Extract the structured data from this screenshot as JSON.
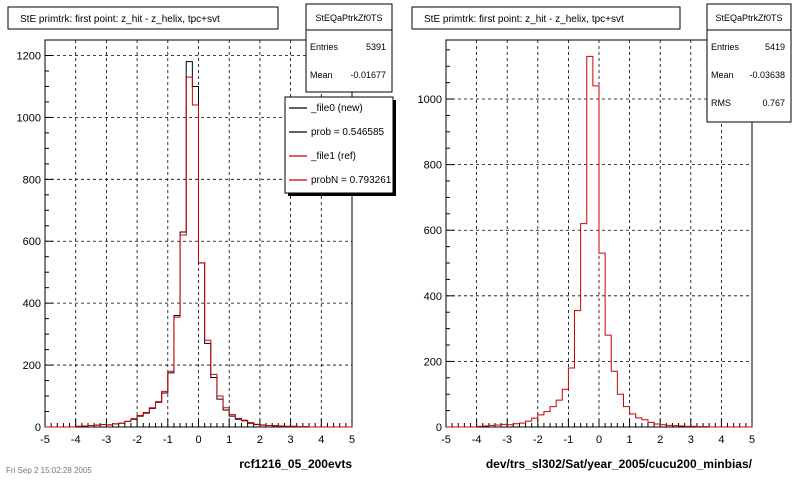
{
  "footer_stamp": "Fri Sep 2 15:02:28 2005",
  "chart_data": [
    {
      "type": "histogram",
      "title": "StE primtrk: first point: z_hit - z_helix, tpc+svt",
      "xlabel": "rcf1216_05_200evts",
      "ylabel": "",
      "xlim": [
        -5,
        5
      ],
      "ylim": [
        0,
        1250
      ],
      "xticks": [
        -5,
        -4,
        -3,
        -2,
        -1,
        0,
        1,
        2,
        3,
        4,
        5
      ],
      "yticks": [
        0,
        200,
        400,
        600,
        800,
        1000,
        1200
      ],
      "grid": true,
      "bin_edges_start": -5,
      "bin_width": 0.2,
      "stats": {
        "name": "StEQaPtrkZf0TS",
        "rows": [
          {
            "label": "Entries",
            "value": "5391"
          },
          {
            "label": "Mean",
            "value": "-0.01677"
          }
        ]
      },
      "legend": {
        "position": "top-right",
        "entries": [
          {
            "label": "_file0 (new)",
            "color": "#000000"
          },
          {
            "label": "prob = 0.546585",
            "color": "#000000"
          },
          {
            "label": "_file1 (ref)",
            "color": "#cc0000"
          },
          {
            "label": "probN = 0.793261",
            "color": "#cc0000"
          }
        ]
      },
      "series": [
        {
          "name": "_file0 (new)",
          "color": "#000000",
          "values": [
            0,
            0,
            0,
            0,
            0,
            2,
            3,
            5,
            6,
            8,
            7,
            10,
            12,
            18,
            25,
            35,
            45,
            60,
            80,
            110,
            175,
            360,
            630,
            1180,
            1100,
            530,
            270,
            160,
            90,
            55,
            35,
            25,
            20,
            12,
            8,
            6,
            5,
            4,
            3,
            2,
            2,
            1,
            1,
            0,
            0,
            0,
            0,
            0,
            0,
            0
          ]
        },
        {
          "name": "_file1 (ref)",
          "color": "#cc0000",
          "values": [
            0,
            0,
            0,
            0,
            0,
            2,
            3,
            5,
            6,
            8,
            7,
            10,
            12,
            18,
            27,
            37,
            47,
            62,
            82,
            115,
            180,
            355,
            620,
            1130,
            1040,
            530,
            280,
            170,
            100,
            62,
            40,
            28,
            22,
            14,
            9,
            7,
            5,
            4,
            3,
            2,
            2,
            1,
            1,
            0,
            0,
            0,
            0,
            0,
            0,
            0
          ]
        }
      ]
    },
    {
      "type": "histogram",
      "title": "StE primtrk: first point: z_hit - z_helix, tpc+svt",
      "xlabel": "dev/trs_sl302/Sat/year_2005/cucu200_minbias/",
      "ylabel": "",
      "xlim": [
        -5,
        5
      ],
      "ylim": [
        0,
        1180
      ],
      "xticks": [
        -5,
        -4,
        -3,
        -2,
        -1,
        0,
        1,
        2,
        3,
        4,
        5
      ],
      "yticks": [
        0,
        200,
        400,
        600,
        800,
        1000
      ],
      "grid": true,
      "bin_edges_start": -5,
      "bin_width": 0.2,
      "stats": {
        "name": "StEQaPtrkZf0TS",
        "rows": [
          {
            "label": "Entries",
            "value": "5419"
          },
          {
            "label": "Mean",
            "value": "-0.03638"
          },
          {
            "label": "RMS",
            "value": "0.767"
          }
        ]
      },
      "series": [
        {
          "name": "",
          "color": "#cc0000",
          "values": [
            0,
            0,
            0,
            0,
            0,
            2,
            3,
            5,
            6,
            8,
            7,
            10,
            12,
            18,
            27,
            37,
            47,
            62,
            82,
            115,
            180,
            355,
            620,
            1130,
            1040,
            530,
            280,
            170,
            100,
            62,
            40,
            28,
            22,
            14,
            9,
            7,
            5,
            4,
            3,
            2,
            2,
            1,
            1,
            0,
            0,
            0,
            0,
            0,
            0,
            0
          ]
        }
      ]
    }
  ]
}
